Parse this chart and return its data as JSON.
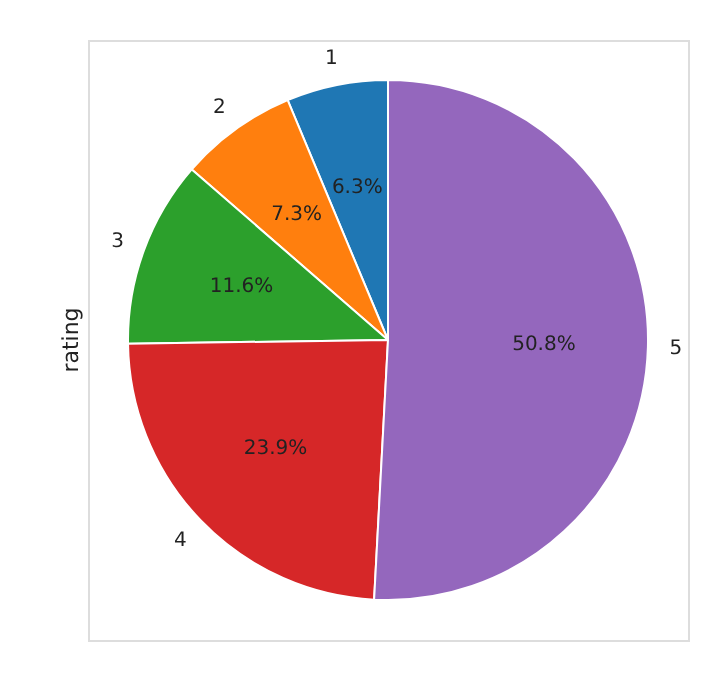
{
  "chart_data": {
    "type": "pie",
    "ylabel": "rating",
    "categories": [
      "1",
      "2",
      "3",
      "4",
      "5"
    ],
    "values": [
      6.3,
      7.3,
      11.6,
      23.9,
      50.8
    ],
    "colors": [
      "#1f77b4",
      "#ff7f0e",
      "#2ca02c",
      "#d62728",
      "#9467bd"
    ],
    "value_labels": [
      "6.3%",
      "7.3%",
      "11.6%",
      "23.9%",
      "50.8%"
    ],
    "legend": false
  }
}
